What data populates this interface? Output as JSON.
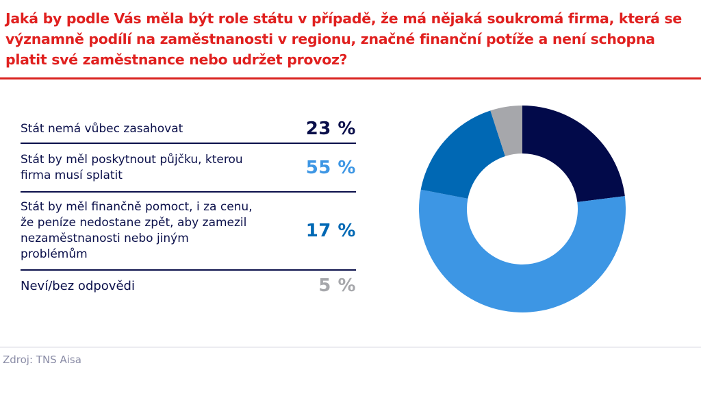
{
  "chart_data": {
    "type": "pie",
    "subtype": "donut",
    "title": "Jaká by podle Vás měla být role státu v případě, že má nějaká soukromá firma, která se významně podílí na zaměstnanosti v regionu, značné finanční potíže a není schopna platit své zaměstnance nebo udržet provoz?",
    "categories": [
      "Stát nemá vůbec zasahovat",
      "Stát by měl poskytnout půjčku, kterou firma musí splatit",
      "Stát by měl finančně pomoct, i za cenu, že peníze nedostane zpět, aby zamezil nezaměstnanosti nebo jiným problémům",
      "Neví/bez odpovědi"
    ],
    "values": [
      23,
      55,
      17,
      5
    ],
    "value_labels": [
      "23 %",
      "55 %",
      "17 %",
      "5 %"
    ],
    "colors": [
      "#020a4a",
      "#3d96e4",
      "#0068b4",
      "#a6a7ab"
    ],
    "label_colors": [
      "#0a0f4a",
      "#3d96e4",
      "#0068b4",
      "#a6a7ab"
    ],
    "legend": "left",
    "start": "top",
    "direction": "clockwise"
  },
  "footer": {
    "source": "Zdroj: TNS Aisa"
  },
  "colors": {
    "title": "#e0201f",
    "text": "#0a0f4a"
  }
}
